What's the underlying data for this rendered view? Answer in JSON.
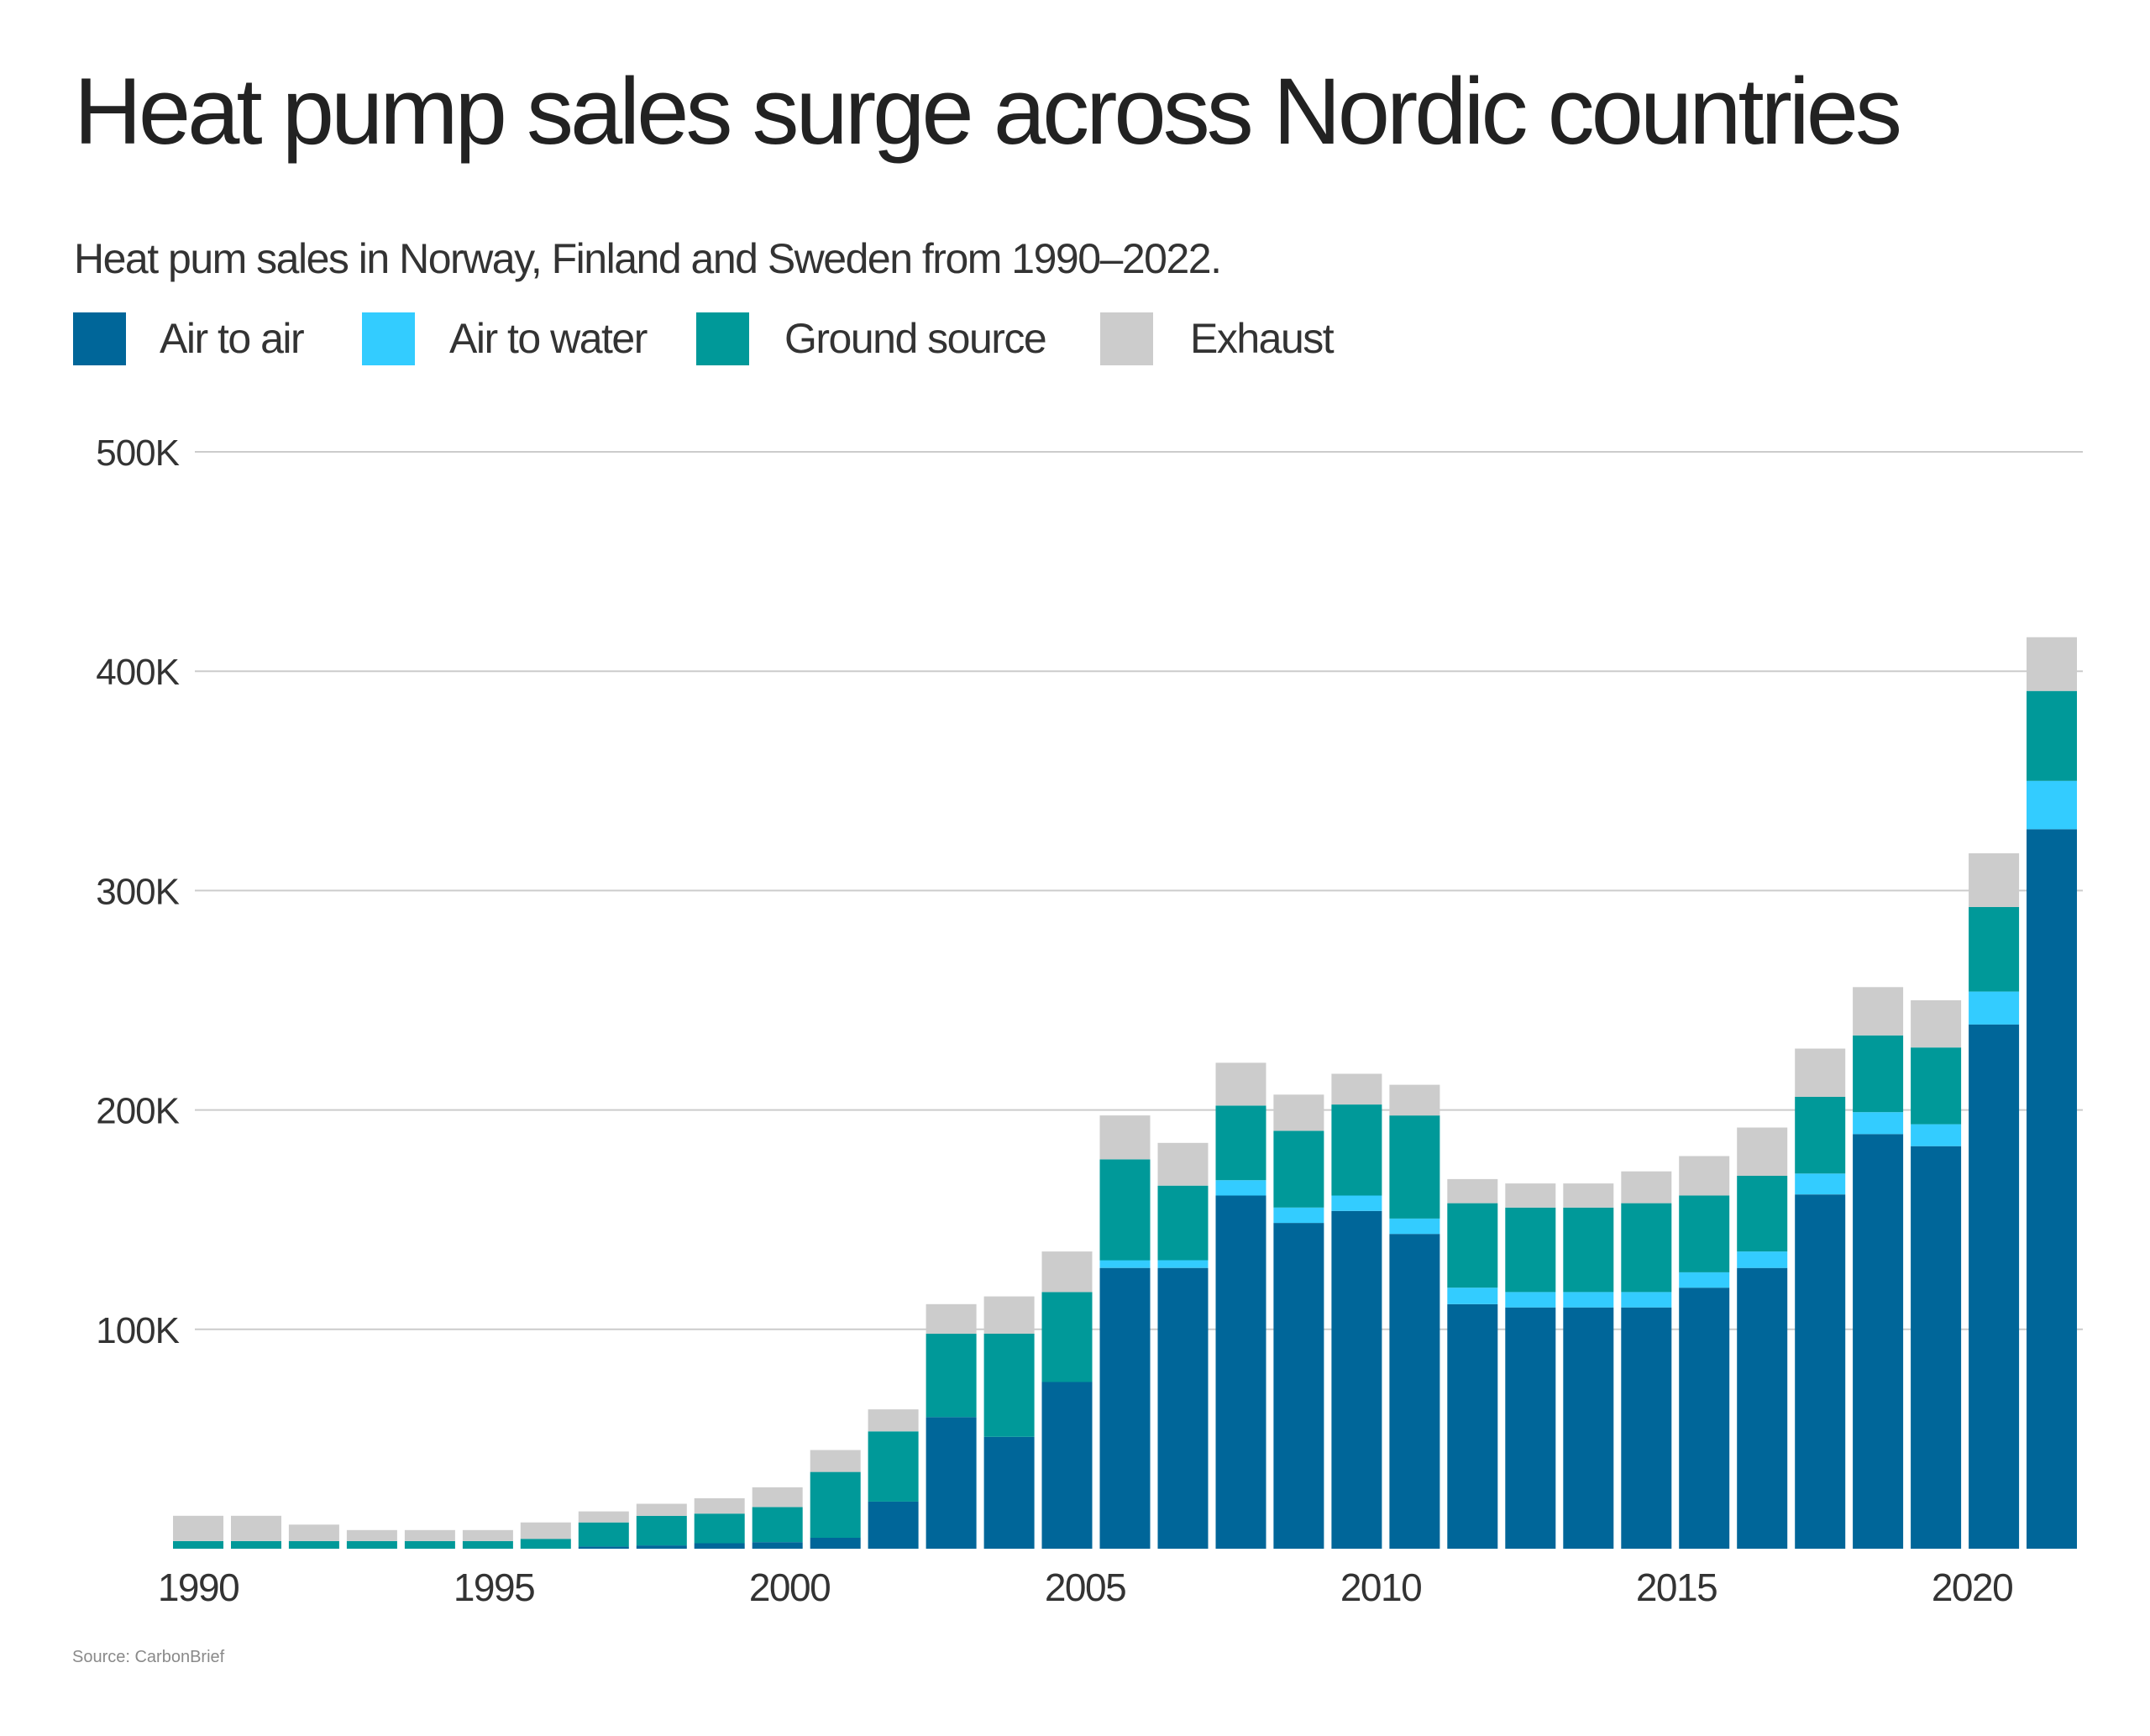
{
  "title": "Heat pump sales surge across Nordic countries",
  "subtitle": "Heat pum sales in Norway, Finland and Sweden from 1990–2022.",
  "source": "Source: CarbonBrief",
  "legend": [
    {
      "label": "Air to air",
      "color": "#006699"
    },
    {
      "label": "Air to water",
      "color": "#33CCFF"
    },
    {
      "label": "Ground source",
      "color": "#009999"
    },
    {
      "label": "Exhaust",
      "color": "#CCCCCC"
    }
  ],
  "chart_data": {
    "type": "bar",
    "stacked": true,
    "title": "Heat pump sales surge across Nordic countries",
    "subtitle": "Heat pum sales in Norway, Finland and Sweden from 1990–2022.",
    "xlabel": "",
    "ylabel": "",
    "unit": "thousand units",
    "ylim": [
      0,
      500
    ],
    "yticks": [
      100,
      200,
      300,
      400,
      500
    ],
    "ytick_labels": [
      "100K",
      "200K",
      "300K",
      "400K",
      "500K"
    ],
    "xtick_labels": [
      "1990",
      "1995",
      "2000",
      "2005",
      "2010",
      "2015",
      "2020"
    ],
    "grid": true,
    "legend_position": "top-left",
    "categories": [
      1990,
      1991,
      1992,
      1993,
      1994,
      1995,
      1996,
      1997,
      1998,
      1999,
      2000,
      2001,
      2002,
      2003,
      2004,
      2005,
      2006,
      2007,
      2008,
      2009,
      2010,
      2011,
      2012,
      2013,
      2014,
      2015,
      2016,
      2017,
      2018,
      2019,
      2020,
      2021,
      2022
    ],
    "series": [
      {
        "name": "Air to air",
        "color": "#006699",
        "values": [
          0,
          0,
          0,
          0,
          0,
          0,
          0,
          1,
          1.5,
          2.5,
          3,
          5,
          21.5,
          60,
          51,
          76,
          128,
          128,
          161,
          148.5,
          154,
          143.5,
          111.5,
          110,
          110,
          110,
          119,
          128,
          161.5,
          189,
          183.5,
          239,
          328
        ]
      },
      {
        "name": "Air to water",
        "color": "#33CCFF",
        "values": [
          0,
          0,
          0,
          0,
          0,
          0,
          0,
          0,
          0,
          0,
          0,
          0,
          0,
          0,
          0,
          0,
          3.5,
          3.5,
          7,
          7,
          7,
          7,
          7.5,
          7,
          7,
          7,
          7,
          7.5,
          9.5,
          10,
          10,
          15,
          22
        ]
      },
      {
        "name": "Ground source",
        "color": "#009999",
        "values": [
          3.5,
          3.5,
          3.5,
          3.5,
          3.5,
          3.5,
          4.5,
          11,
          13.5,
          13.5,
          16,
          30,
          32,
          38,
          47,
          41,
          46,
          34,
          34,
          35,
          41.5,
          47,
          38.5,
          38.5,
          38.5,
          40.5,
          35,
          34.5,
          35,
          35,
          35,
          38.5,
          41
        ]
      },
      {
        "name": "Exhaust",
        "color": "#CCCCCC",
        "values": [
          11.5,
          11.5,
          7.5,
          5,
          5,
          5,
          7.5,
          5,
          5.5,
          7,
          9,
          10,
          10,
          13.5,
          17,
          18.5,
          20,
          19.5,
          19.5,
          16.5,
          14,
          14,
          11,
          11,
          11,
          14.5,
          18,
          22,
          22,
          22,
          21.5,
          24.5,
          24.5
        ]
      }
    ]
  }
}
